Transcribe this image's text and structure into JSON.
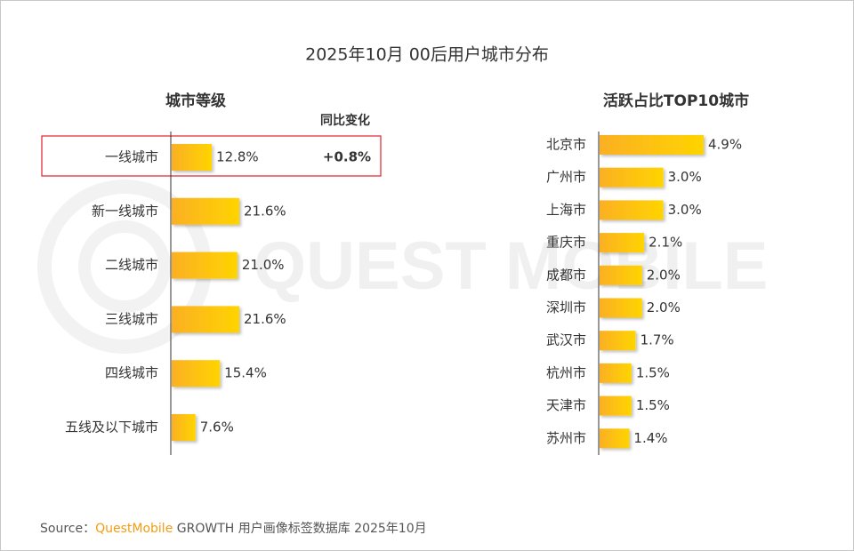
{
  "title": "2025年10月 00后用户城市分布",
  "watermark": "QUEST MOBILE",
  "source": {
    "prefix": "Source：",
    "brand": "QuestMobile",
    "rest": " GROWTH 用户画像标签数据库 2025年10月"
  },
  "chart_data": [
    {
      "type": "bar",
      "orientation": "horizontal",
      "title": "城市等级",
      "categories": [
        "一线城市",
        "新一线城市",
        "二线城市",
        "三线城市",
        "四线城市",
        "五线及以下城市"
      ],
      "values": [
        12.8,
        21.6,
        21.0,
        21.6,
        15.4,
        7.6
      ],
      "value_labels": [
        "12.8%",
        "21.6%",
        "21.0%",
        "21.6%",
        "15.4%",
        "7.6%"
      ],
      "colors": [
        "#fbb023",
        "#ffd400"
      ],
      "annotation_header": "同比变化",
      "annotation": "+0.8%",
      "annotation_color": "#e8112d"
    },
    {
      "type": "bar",
      "orientation": "horizontal",
      "title": "活跃占比TOP10城市",
      "categories": [
        "北京市",
        "广州市",
        "上海市",
        "重庆市",
        "成都市",
        "深圳市",
        "武汉市",
        "杭州市",
        "天津市",
        "苏州市"
      ],
      "values": [
        4.9,
        3.0,
        3.0,
        2.1,
        2.0,
        2.0,
        1.7,
        1.5,
        1.5,
        1.4
      ],
      "value_labels": [
        "4.9%",
        "3.0%",
        "3.0%",
        "2.1%",
        "2.0%",
        "2.0%",
        "1.7%",
        "1.5%",
        "1.5%",
        "1.4%"
      ],
      "colors": [
        "#fbb023",
        "#ffd400"
      ]
    }
  ]
}
